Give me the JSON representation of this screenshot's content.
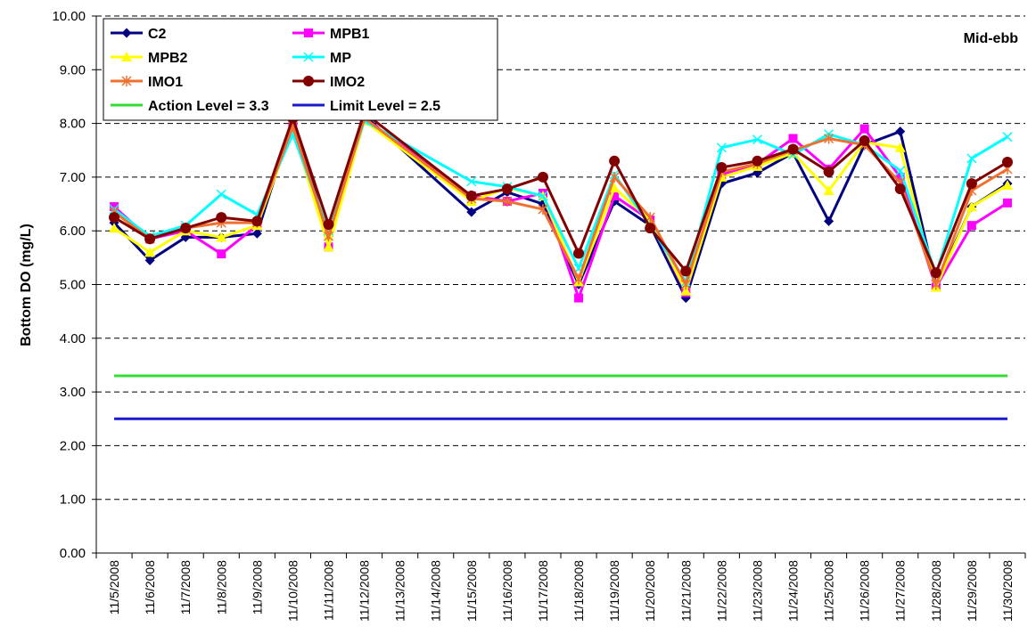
{
  "chart_data": {
    "type": "line",
    "annotation": "Mid-ebb",
    "y_label": "Bottom DO (mg/L)",
    "categories": [
      "11/5/2008",
      "11/6/2008",
      "11/7/2008",
      "11/8/2008",
      "11/9/2008",
      "11/10/2008",
      "11/11/2008",
      "11/12/2008",
      "11/13/2008",
      "11/14/2008",
      "11/15/2008",
      "11/16/2008",
      "11/17/2008",
      "11/18/2008",
      "11/19/2008",
      "11/20/2008",
      "11/21/2008",
      "11/22/2008",
      "11/23/2008",
      "11/24/2008",
      "11/25/2008",
      "11/26/2008",
      "11/27/2008",
      "11/28/2008",
      "11/29/2008",
      "11/30/2008"
    ],
    "ylim": [
      0,
      10
    ],
    "yticks": [
      {
        "value": 0,
        "label": "0.00"
      },
      {
        "value": 1,
        "label": "1.00"
      },
      {
        "value": 2,
        "label": "2.00"
      },
      {
        "value": 3,
        "label": "3.00"
      },
      {
        "value": 4,
        "label": "4.00"
      },
      {
        "value": 5,
        "label": "5.00"
      },
      {
        "value": 6,
        "label": "6.00"
      },
      {
        "value": 7,
        "label": "7.00"
      },
      {
        "value": 8,
        "label": "8.00"
      },
      {
        "value": 9,
        "label": "9.00"
      },
      {
        "value": 10,
        "label": "10.00"
      }
    ],
    "grid": true,
    "span_gaps": true,
    "series": [
      {
        "name": "C2",
        "color": "#000080",
        "marker": "diamond",
        "values": [
          6.15,
          5.45,
          5.88,
          5.88,
          5.95,
          8.05,
          5.9,
          8.15,
          null,
          null,
          6.35,
          6.72,
          6.5,
          5.0,
          6.55,
          6.1,
          4.75,
          6.88,
          7.08,
          7.45,
          6.18,
          7.6,
          7.85,
          5.0,
          6.45,
          6.88
        ]
      },
      {
        "name": "MPB1",
        "color": "#ff00ff",
        "marker": "square",
        "values": [
          6.45,
          5.85,
          6.0,
          5.57,
          6.1,
          8.0,
          5.7,
          8.1,
          null,
          null,
          6.65,
          6.55,
          6.7,
          4.75,
          6.65,
          6.2,
          4.85,
          7.05,
          7.25,
          7.72,
          7.15,
          7.9,
          7.0,
          4.95,
          6.1,
          6.52
        ]
      },
      {
        "name": "MPB2",
        "color": "#ffff00",
        "marker": "triangle",
        "values": [
          6.05,
          5.6,
          6.0,
          5.88,
          6.1,
          7.9,
          5.7,
          8.05,
          null,
          null,
          6.55,
          6.8,
          6.65,
          5.05,
          6.8,
          6.2,
          4.88,
          7.0,
          7.2,
          7.45,
          6.75,
          7.65,
          7.55,
          4.95,
          6.45,
          6.85
        ]
      },
      {
        "name": "MP",
        "color": "#00ffff",
        "marker": "x",
        "values": [
          6.4,
          5.9,
          6.1,
          6.68,
          6.3,
          7.8,
          6.0,
          8.05,
          null,
          null,
          6.92,
          6.82,
          6.65,
          5.3,
          7.05,
          6.1,
          5.05,
          7.55,
          7.7,
          7.42,
          7.8,
          7.6,
          7.12,
          5.2,
          7.35,
          7.75
        ]
      },
      {
        "name": "IMO1",
        "color": "#f07030",
        "marker": "star",
        "values": [
          6.35,
          5.85,
          6.05,
          6.15,
          6.15,
          7.95,
          5.9,
          8.1,
          null,
          null,
          6.6,
          6.55,
          6.4,
          5.1,
          7.0,
          6.25,
          5.0,
          7.1,
          7.25,
          7.5,
          7.72,
          7.6,
          6.9,
          5.0,
          6.75,
          7.15
        ]
      },
      {
        "name": "IMO2",
        "color": "#800000",
        "marker": "circle",
        "values": [
          6.25,
          5.85,
          6.05,
          6.25,
          6.18,
          8.1,
          6.12,
          8.2,
          null,
          null,
          6.65,
          6.78,
          7.0,
          5.58,
          7.3,
          6.05,
          5.25,
          7.18,
          7.3,
          7.52,
          7.1,
          7.68,
          6.78,
          5.22,
          6.88,
          7.28
        ]
      },
      {
        "name": "Action Level = 3.3",
        "color": "#33dd33",
        "marker": "none",
        "values": [
          3.3,
          3.3,
          3.3,
          3.3,
          3.3,
          3.3,
          3.3,
          3.3,
          3.3,
          3.3,
          3.3,
          3.3,
          3.3,
          3.3,
          3.3,
          3.3,
          3.3,
          3.3,
          3.3,
          3.3,
          3.3,
          3.3,
          3.3,
          3.3,
          3.3,
          3.3
        ]
      },
      {
        "name": "Limit Level = 2.5",
        "color": "#1a1acc",
        "marker": "dash",
        "values": [
          2.5,
          2.5,
          2.5,
          2.5,
          2.5,
          2.5,
          2.5,
          2.5,
          2.5,
          2.5,
          2.5,
          2.5,
          2.5,
          2.5,
          2.5,
          2.5,
          2.5,
          2.5,
          2.5,
          2.5,
          2.5,
          2.5,
          2.5,
          2.5,
          2.5,
          2.5
        ]
      }
    ]
  }
}
